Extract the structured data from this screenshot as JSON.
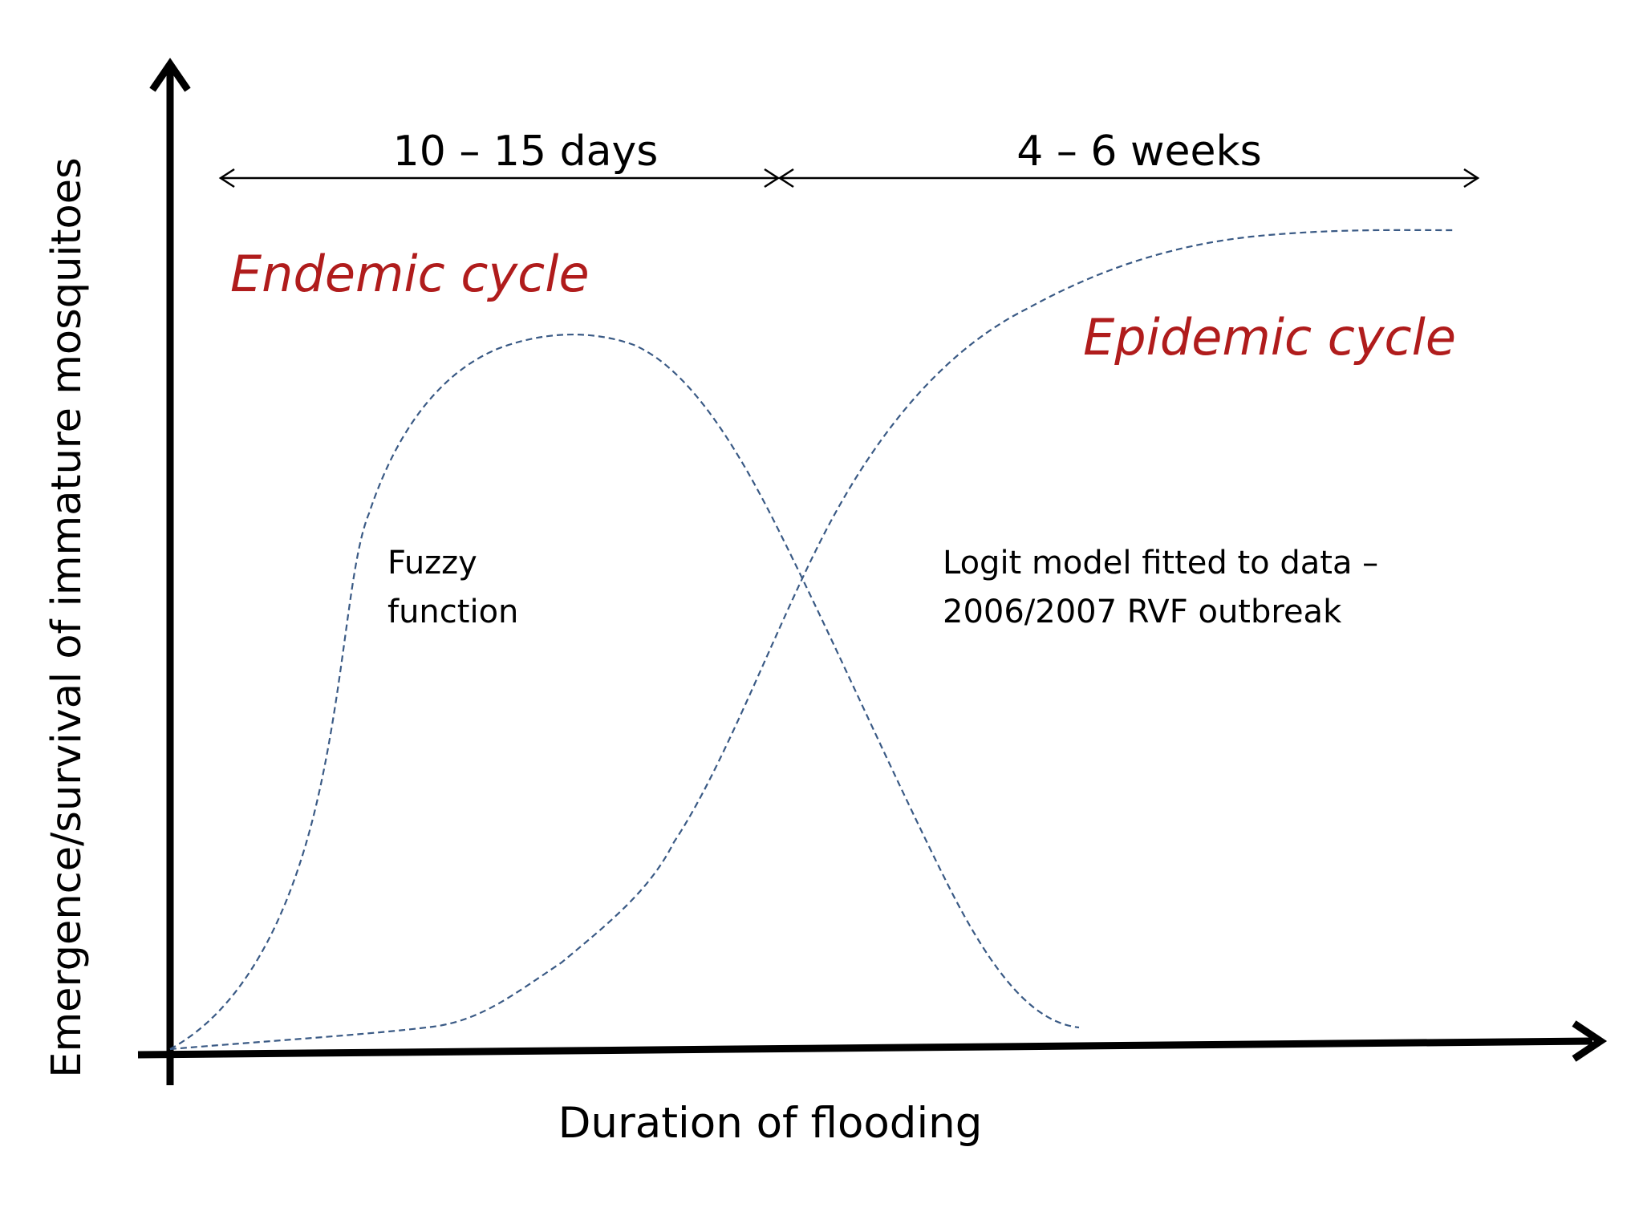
{
  "colors": {
    "axis": "#000000",
    "curve": "#3a5a85",
    "cycle_label": "#b01c1c",
    "background": "#ffffff"
  },
  "axes": {
    "y_label": "Emergence/survival of immature mosquitoes",
    "x_label": "Duration of flooding"
  },
  "periods": {
    "first_label": "10 – 15 days",
    "second_label": "4 – 6 weeks"
  },
  "cycles": {
    "endemic": "Endemic cycle",
    "epidemic": "Epidemic cycle"
  },
  "curves": {
    "fuzzy": {
      "line1": "Fuzzy",
      "line2": "function"
    },
    "logit": {
      "line1": "Logit model fitted to data –",
      "line2": "2006/2007 RVF outbreak"
    }
  }
}
